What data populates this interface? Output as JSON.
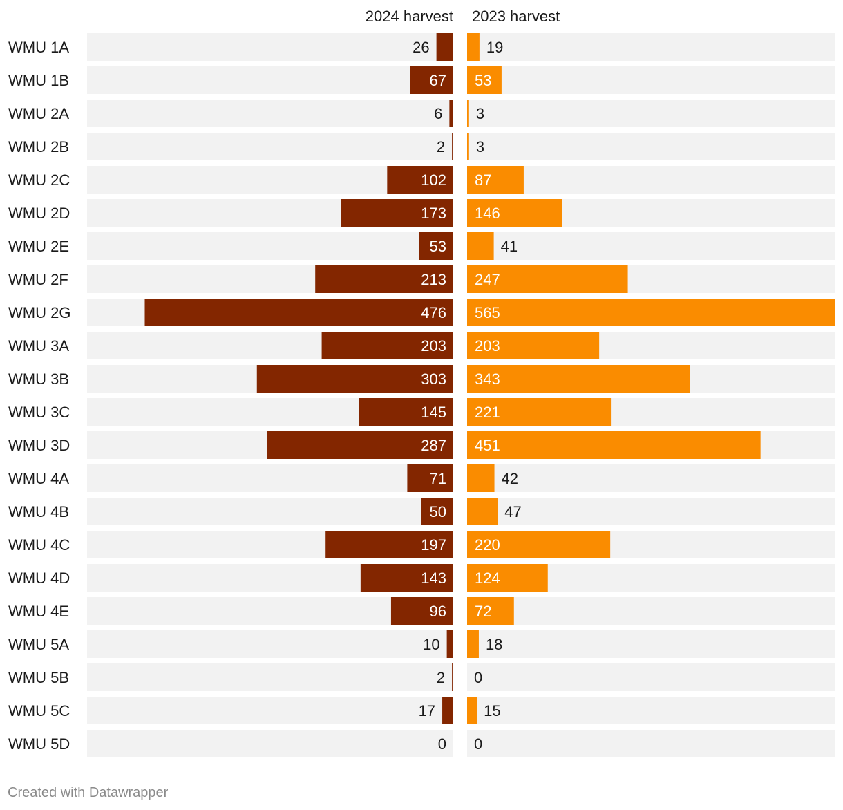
{
  "chart_data": {
    "type": "bar",
    "orientation": "horizontal-split",
    "categories": [
      "WMU 1A",
      "WMU 1B",
      "WMU 2A",
      "WMU 2B",
      "WMU 2C",
      "WMU 2D",
      "WMU 2E",
      "WMU 2F",
      "WMU 2G",
      "WMU 3A",
      "WMU 3B",
      "WMU 3C",
      "WMU 3D",
      "WMU 4A",
      "WMU 4B",
      "WMU 4C",
      "WMU 4D",
      "WMU 4E",
      "WMU 5A",
      "WMU 5B",
      "WMU 5C",
      "WMU 5D"
    ],
    "series": [
      {
        "name": "2024 harvest",
        "color": "#832600",
        "values": [
          26,
          67,
          6,
          2,
          102,
          173,
          53,
          213,
          476,
          203,
          303,
          145,
          287,
          71,
          50,
          197,
          143,
          96,
          10,
          2,
          17,
          0
        ]
      },
      {
        "name": "2023 harvest",
        "color": "#fa8c00",
        "values": [
          19,
          53,
          3,
          3,
          87,
          146,
          41,
          247,
          565,
          203,
          343,
          221,
          451,
          42,
          47,
          220,
          124,
          72,
          18,
          0,
          15,
          0
        ]
      }
    ],
    "xlim": [
      0,
      565
    ],
    "track_color": "#f2f2f2"
  },
  "footer": {
    "credit": "Created with Datawrapper"
  }
}
